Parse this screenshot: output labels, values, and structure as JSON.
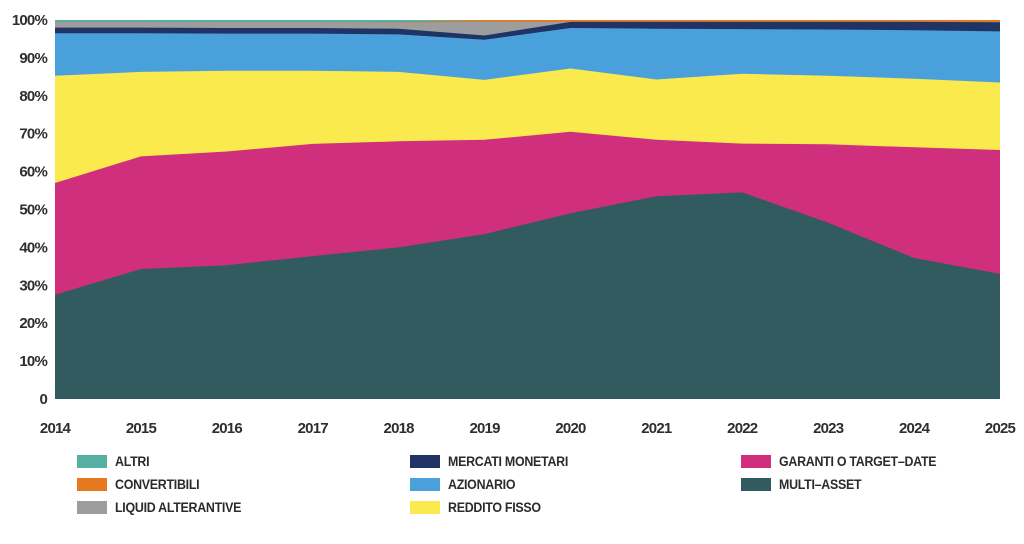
{
  "chart_data": {
    "type": "area",
    "stacked": true,
    "percent": true,
    "x": [
      2014,
      2015,
      2016,
      2017,
      2018,
      2019,
      2020,
      2021,
      2022,
      2023,
      2024,
      2025
    ],
    "series": [
      {
        "name": "MULTI–ASSET",
        "color": "#315b5e",
        "values": [
          27.5,
          34.3,
          35.3,
          37.7,
          40.0,
          43.5,
          49.0,
          53.5,
          54.5,
          46.5,
          37.2,
          33.0
        ]
      },
      {
        "name": "GARANTI O TARGET–DATE",
        "color": "#d02f7e",
        "values": [
          29.5,
          29.7,
          30.0,
          29.6,
          28.0,
          24.9,
          21.5,
          14.9,
          12.9,
          20.7,
          29.2,
          32.7
        ]
      },
      {
        "name": "REDDITO FISSO",
        "color": "#fbea4d",
        "values": [
          28.3,
          22.3,
          21.3,
          19.3,
          18.3,
          15.8,
          16.7,
          15.9,
          18.4,
          18.1,
          18.1,
          17.8
        ]
      },
      {
        "name": "AZIONARIO",
        "color": "#4aa0db",
        "values": [
          11.2,
          10.2,
          9.8,
          9.8,
          9.9,
          10.6,
          10.7,
          13.4,
          11.8,
          12.2,
          12.8,
          13.5
        ]
      },
      {
        "name": "MERCATI MONETARI",
        "color": "#1f3365",
        "values": [
          1.5,
          1.5,
          1.5,
          1.5,
          1.5,
          1.1,
          1.6,
          1.8,
          1.9,
          2.0,
          2.2,
          2.4
        ]
      },
      {
        "name": "LIQUID ALTERANTIVE",
        "color": "#9d9da0",
        "values": [
          1.5,
          1.5,
          1.5,
          1.5,
          1.6,
          3.6,
          0.0,
          0.0,
          0.0,
          0.0,
          0.0,
          0.0
        ]
      },
      {
        "name": "CONVERTIBILI",
        "color": "#e5791f",
        "values": [
          0.0,
          0.0,
          0.0,
          0.0,
          0.1,
          0.45,
          0.5,
          0.5,
          0.5,
          0.5,
          0.5,
          0.6
        ]
      },
      {
        "name": "ALTRI",
        "color": "#55b0a2",
        "values": [
          0.5,
          0.5,
          0.6,
          0.6,
          0.6,
          0.05,
          0.0,
          0.0,
          0.0,
          0.0,
          0.0,
          0.0
        ]
      }
    ],
    "ylim": [
      0,
      100
    ],
    "y_tick_step": 10,
    "y_tick_suffix": "%",
    "y_zero_label": "0",
    "grid": false,
    "legend_position": "bottom"
  },
  "legend": {
    "columns": [
      [
        {
          "label": "ALTRI",
          "color": "#55b0a2"
        },
        {
          "label": "CONVERTIBILI",
          "color": "#e5791f"
        },
        {
          "label": "LIQUID ALTERANTIVE",
          "color": "#9d9da0"
        }
      ],
      [
        {
          "label": "MERCATI MONETARI",
          "color": "#1f3365"
        },
        {
          "label": "AZIONARIO",
          "color": "#4aa0db"
        },
        {
          "label": "REDDITO FISSO",
          "color": "#fbea4d"
        }
      ],
      [
        {
          "label": "GARANTI O TARGET–DATE",
          "color": "#d02f7e"
        },
        {
          "label": "MULTI–ASSET",
          "color": "#315b5e"
        }
      ]
    ]
  }
}
